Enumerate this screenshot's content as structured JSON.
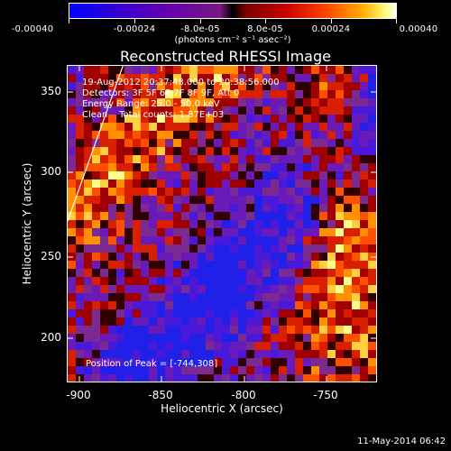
{
  "colorbar": {
    "ticks": [
      "-0.00040",
      "-0.00024",
      "-8.0e-05",
      "8.0e-05",
      "0.00024",
      "0.00040"
    ],
    "units": "(photons cm⁻² s⁻¹ asec⁻²)",
    "range": [
      -0.0004,
      0.0004
    ]
  },
  "title": "Reconstructed RHESSI Image",
  "info": {
    "time": "19-Aug-2012 20:37:48.000 to 20:38:56.000",
    "detectors": "Detectors: 3F 5F 6F 7F 8F 9F, Att 0",
    "energy": "Energy Range: 25.0 - 50.0 keV",
    "clean": "Clean    Total counts: 1.87E+03",
    "peak": "Position of Peak = [-744,308]"
  },
  "axes": {
    "xlabel": "Heliocentric X (arcsec)",
    "ylabel": "Heliocentric Y (arcsec)",
    "xticks": [
      "-900",
      "-850",
      "-800",
      "-750"
    ],
    "yticks": [
      "350",
      "300",
      "250",
      "200"
    ],
    "xlim": [
      -910,
      -717
    ],
    "ylim": [
      172,
      370
    ]
  },
  "footer": {
    "timestamp": "11-May-2014 06:42"
  },
  "colors": {
    "negative": "#0000ff",
    "zero": "#000000",
    "positive": "#ff4000",
    "peak": "#ffffff"
  }
}
